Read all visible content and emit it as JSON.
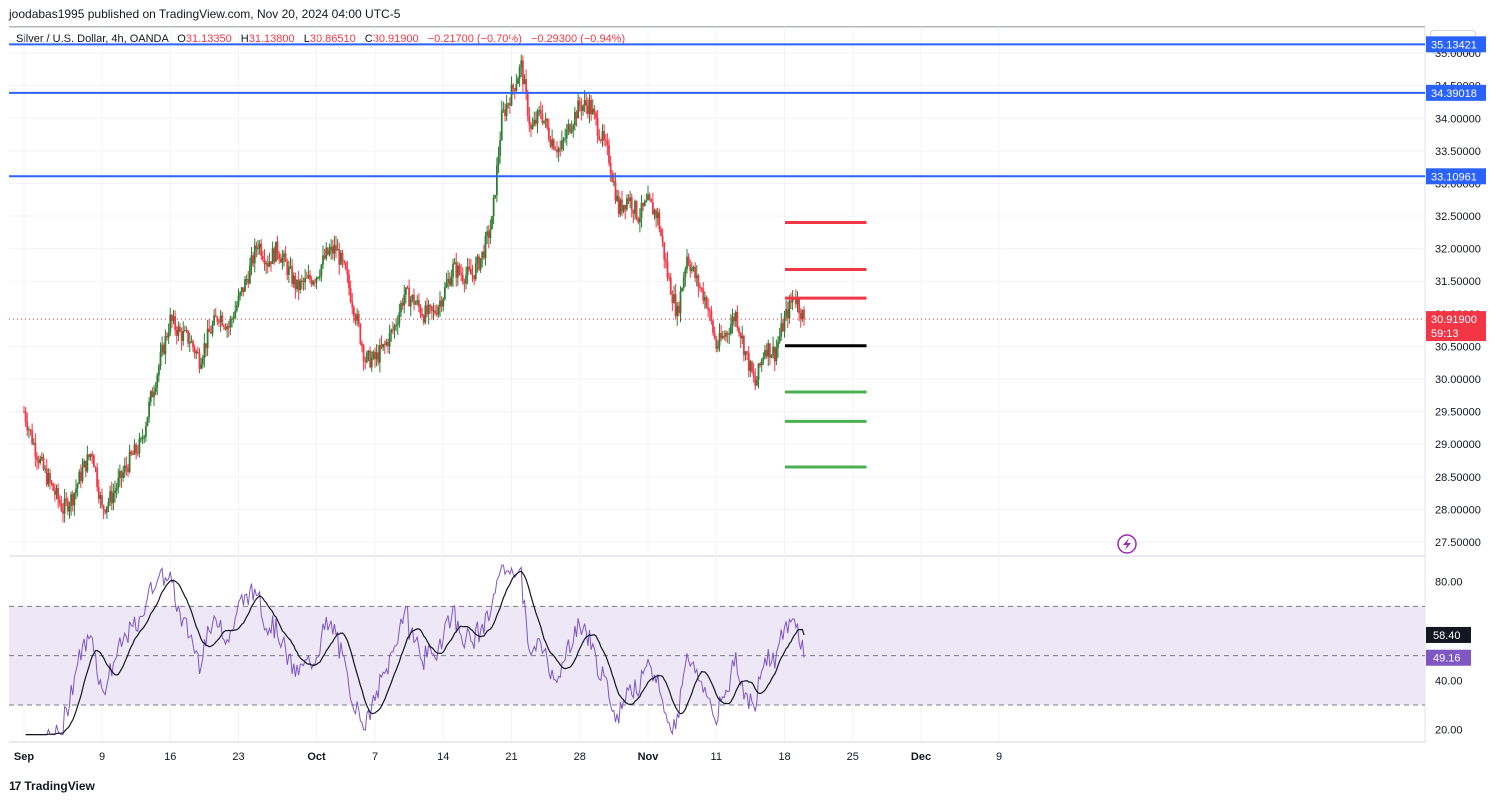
{
  "header": {
    "credit": "joodabas1995 published on TradingView.com, Nov 20, 2024 04:00 UTC-5",
    "symbol": "Silver / U.S. Dollar, 4h, OANDA",
    "open_label": "O",
    "open": "31.13350",
    "high_label": "H",
    "high": "31.13800",
    "low_label": "L",
    "low": "30.86510",
    "close_label": "C",
    "close": "30.91900",
    "change": "−0.21700 (−0.70%)",
    "change2": "−0.29300 (−0.94%)",
    "currency": "USD"
  },
  "footer": {
    "brand": "TradingView",
    "logo_glyph": "17"
  },
  "colors": {
    "up": "#089981",
    "up_candle": "#2f7d32",
    "down": "#f23645",
    "level_line": "#2962ff",
    "rsi": "#7e57c2",
    "rsi_band": "#ede7f6",
    "target_red": "#f23645",
    "target_green": "#4caf50",
    "entry": "#000000"
  },
  "chart_data": [
    {
      "type": "candlestick",
      "title": "Silver / U.S. Dollar, 4h, OANDA",
      "ylim": [
        27.3,
        35.4
      ],
      "y_ticks": [
        27.5,
        28.0,
        28.5,
        29.0,
        29.5,
        30.0,
        30.5,
        31.0,
        31.5,
        32.0,
        32.5,
        33.0,
        33.5,
        34.0,
        34.5,
        35.0
      ],
      "y_tick_labels": [
        "27.50000",
        "28.00000",
        "28.50000",
        "29.00000",
        "29.50000",
        "30.00000",
        "30.50000",
        "31.00000",
        "31.50000",
        "32.00000",
        "32.50000",
        "33.00000",
        "33.50000",
        "34.00000",
        "34.50000",
        "35.00000"
      ],
      "x_tick_labels": [
        "Sep",
        "9",
        "16",
        "23",
        "Oct",
        "7",
        "14",
        "21",
        "28",
        "Nov",
        "11",
        "18",
        "25",
        "Dec",
        "9"
      ],
      "x_tick_days": [
        0,
        8,
        15,
        22,
        30,
        36,
        43,
        50,
        57,
        64,
        71,
        78,
        85,
        92,
        100
      ],
      "price_path": [
        [
          0,
          29.5
        ],
        [
          1,
          29.0
        ],
        [
          2,
          28.6
        ],
        [
          3,
          28.3
        ],
        [
          4,
          28.0
        ],
        [
          5,
          28.2
        ],
        [
          6,
          28.6
        ],
        [
          7,
          28.9
        ],
        [
          8,
          28.0
        ],
        [
          9,
          28.2
        ],
        [
          10,
          28.5
        ],
        [
          11,
          28.8
        ],
        [
          12,
          29.0
        ],
        [
          13,
          29.7
        ],
        [
          14,
          30.3
        ],
        [
          15,
          30.9
        ],
        [
          16,
          30.7
        ],
        [
          17,
          30.6
        ],
        [
          18,
          30.3
        ],
        [
          19,
          30.7
        ],
        [
          20,
          31.0
        ],
        [
          21,
          30.8
        ],
        [
          22,
          31.2
        ],
        [
          23,
          31.6
        ],
        [
          24,
          32.1
        ],
        [
          25,
          31.8
        ],
        [
          26,
          32.0
        ],
        [
          27,
          31.7
        ],
        [
          28,
          31.4
        ],
        [
          29,
          31.5
        ],
        [
          30,
          31.6
        ],
        [
          31,
          31.9
        ],
        [
          32,
          32.0
        ],
        [
          33,
          31.6
        ],
        [
          34,
          31.0
        ],
        [
          35,
          30.3
        ],
        [
          36,
          30.3
        ],
        [
          37,
          30.5
        ],
        [
          38,
          30.8
        ],
        [
          39,
          31.3
        ],
        [
          40,
          31.2
        ],
        [
          41,
          31.0
        ],
        [
          42,
          31.0
        ],
        [
          43,
          31.3
        ],
        [
          44,
          31.7
        ],
        [
          45,
          31.6
        ],
        [
          46,
          31.6
        ],
        [
          47,
          31.9
        ],
        [
          48,
          32.4
        ],
        [
          49,
          34.0
        ],
        [
          50,
          34.4
        ],
        [
          51,
          34.8
        ],
        [
          52,
          33.8
        ],
        [
          53,
          34.1
        ],
        [
          54,
          33.7
        ],
        [
          55,
          33.5
        ],
        [
          56,
          33.9
        ],
        [
          57,
          34.2
        ],
        [
          58,
          34.2
        ],
        [
          59,
          33.8
        ],
        [
          60,
          33.4
        ],
        [
          61,
          32.6
        ],
        [
          62,
          32.8
        ],
        [
          63,
          32.5
        ],
        [
          64,
          32.7
        ],
        [
          65,
          32.5
        ],
        [
          66,
          31.6
        ],
        [
          67,
          31.0
        ],
        [
          68,
          31.9
        ],
        [
          69,
          31.5
        ],
        [
          70,
          31.2
        ],
        [
          71,
          30.5
        ],
        [
          72,
          30.7
        ],
        [
          73,
          31.0
        ],
        [
          74,
          30.4
        ],
        [
          75,
          29.9
        ],
        [
          76,
          30.5
        ],
        [
          77,
          30.4
        ],
        [
          78,
          30.9
        ],
        [
          79,
          31.3
        ],
        [
          80,
          30.92
        ]
      ],
      "last_day": 80,
      "horizontal_levels": [
        {
          "label": "35.13421",
          "value": 35.13421
        },
        {
          "label": "34.39018",
          "value": 34.39018
        },
        {
          "label": "33.10961",
          "value": 33.10961
        }
      ],
      "current_price": {
        "label": "30.91900",
        "countdown": "59:13",
        "value": 30.919
      },
      "target_lines": [
        {
          "role": "target-red",
          "value": 32.4
        },
        {
          "role": "target-red",
          "value": 31.68
        },
        {
          "role": "target-red",
          "value": 31.24
        },
        {
          "role": "entry",
          "value": 30.51
        },
        {
          "role": "target-green",
          "value": 29.8
        },
        {
          "role": "target-green",
          "value": 29.35
        },
        {
          "role": "target-green",
          "value": 28.65
        }
      ],
      "target_day_range": [
        78,
        86
      ]
    },
    {
      "type": "line",
      "indicator": "RSI",
      "ylim": [
        15,
        90
      ],
      "y_ticks": [
        20,
        40,
        80
      ],
      "y_tick_labels": [
        "20.00",
        "40.00",
        "80.00"
      ],
      "band": [
        30,
        70
      ],
      "midline": 50,
      "rsi_value_label": "49.16",
      "ma_value_label": "58.40",
      "rsi_value": 49.16,
      "ma_value": 58.4
    }
  ]
}
